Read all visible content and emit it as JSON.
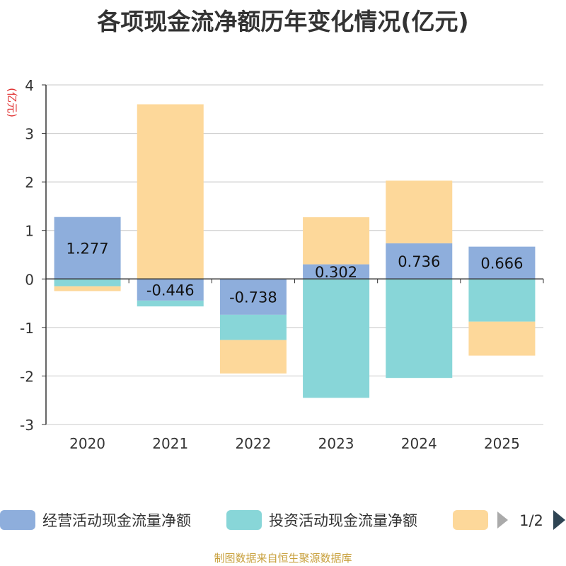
{
  "title": "各项现金流净额历年变化情况(亿元)",
  "footer": "制图数据来自恒生聚源数据库",
  "chart_data": {
    "type": "bar",
    "stacked": true,
    "title": "各项现金流净额历年变化情况(亿元)",
    "ylabel": "(亿元)",
    "xlabel": "",
    "ylim": [
      -3,
      4
    ],
    "yticks": [
      -3,
      -2,
      -1,
      0,
      1,
      2,
      3,
      4
    ],
    "categories": [
      "2020",
      "2021",
      "2022",
      "2023",
      "2024",
      "2025"
    ],
    "series": [
      {
        "name": "经营活动现金流量净额",
        "color": "#8eaedc",
        "values": [
          1.277,
          -0.446,
          -0.738,
          0.302,
          0.736,
          0.666
        ],
        "labels": [
          "1.277",
          "-0.446",
          "-0.738",
          "0.302",
          "0.736",
          "0.666"
        ]
      },
      {
        "name": "投资活动现金流量净额",
        "color": "#88d6d8",
        "values": [
          -0.15,
          -0.12,
          -0.52,
          -2.45,
          -2.04,
          -0.88
        ]
      },
      {
        "name": "",
        "color": "#fdd89a",
        "values": [
          -0.1,
          3.6,
          -0.69,
          0.97,
          1.29,
          -0.7
        ]
      }
    ],
    "legend": {
      "position": "bottom",
      "page": "1/2"
    },
    "grid": true
  }
}
